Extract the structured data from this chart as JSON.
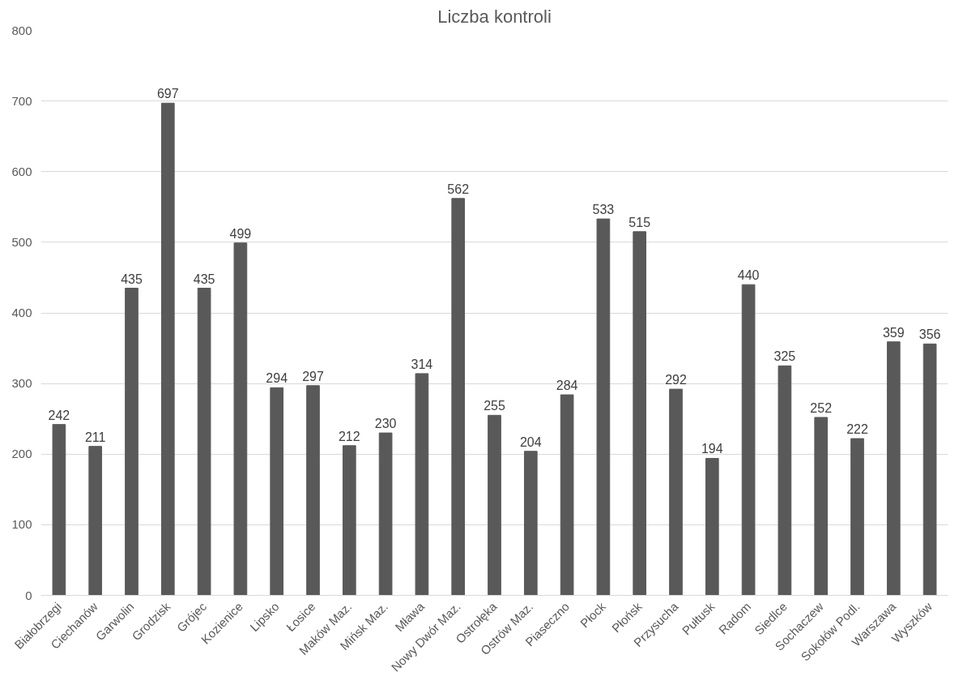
{
  "chart_data": {
    "type": "bar",
    "title": "Liczba kontroli",
    "categories": [
      "Białobrzegi",
      "Ciechanów",
      "Garwolin",
      "Grodzisk",
      "Grójec",
      "Kozienice",
      "Lipsko",
      "Łosice",
      "Maków Maz.",
      "Mińsk Maz.",
      "Mława",
      "Nowy Dwór Maz.",
      "Ostrołęka",
      "Ostrów Maz.",
      "Piaseczno",
      "Płock",
      "Płońsk",
      "Przysucha",
      "Pułtusk",
      "Radom",
      "Siedlce",
      "Sochaczew",
      "Sokołów Podl.",
      "Warszawa",
      "Wyszków"
    ],
    "values": [
      242,
      211,
      435,
      697,
      435,
      499,
      294,
      297,
      212,
      230,
      314,
      562,
      255,
      204,
      284,
      533,
      515,
      292,
      194,
      440,
      325,
      252,
      222,
      359,
      356
    ],
    "color": "#595959",
    "ylim": [
      0,
      800
    ],
    "yticks": [
      0,
      100,
      200,
      300,
      400,
      500,
      600,
      700,
      800
    ],
    "grid": "y",
    "data_labels": true
  }
}
